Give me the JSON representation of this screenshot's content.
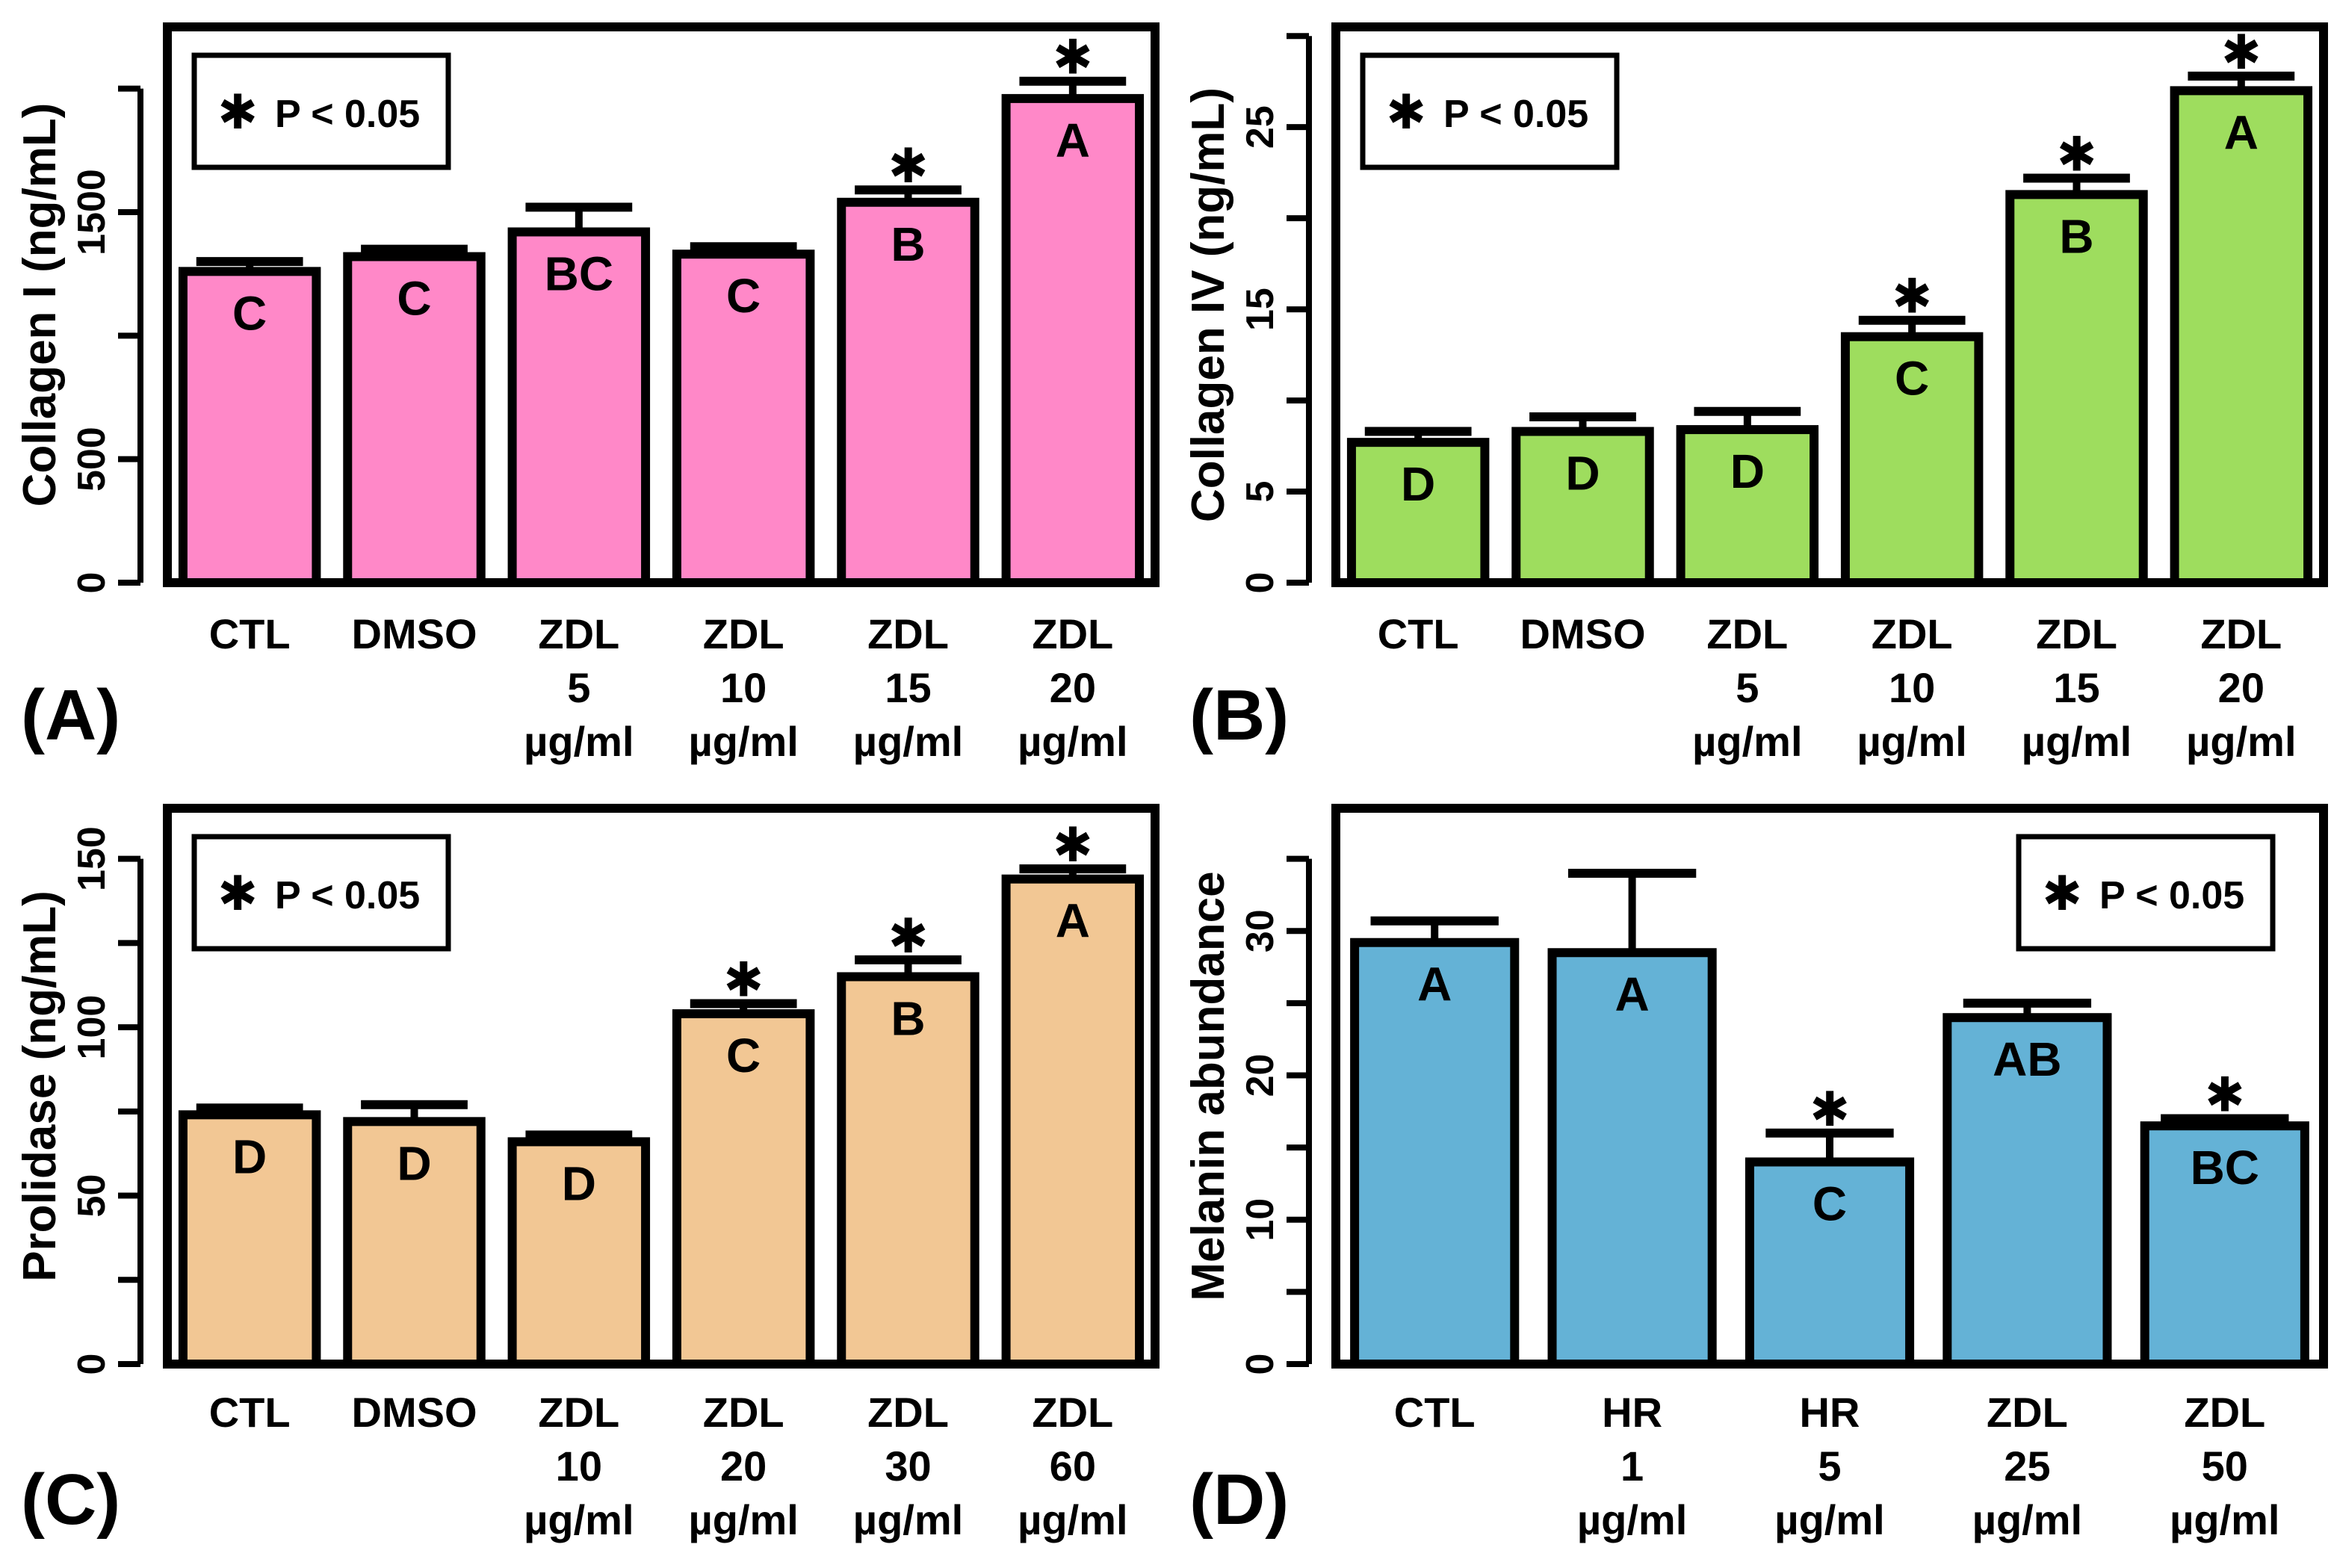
{
  "legend_text": "P < 0.05",
  "legend_symbol": "✱",
  "chart_data": [
    {
      "panel": "(A)",
      "type": "bar",
      "ylabel": "Collagen I (ng/mL)",
      "ylim": [
        0,
        2250
      ],
      "yticks": [
        0,
        500,
        1500
      ],
      "legend_position": "top-left",
      "bar_color": "#ff88c8",
      "categories": [
        [
          "CTL"
        ],
        [
          "DMSO"
        ],
        [
          "ZDL",
          "5",
          "µg/ml"
        ],
        [
          "ZDL",
          "10",
          "µg/ml"
        ],
        [
          "ZDL",
          "15",
          "µg/ml"
        ],
        [
          "ZDL",
          "20",
          "µg/ml"
        ]
      ],
      "values": [
        1260,
        1320,
        1420,
        1330,
        1540,
        1960
      ],
      "errors": [
        40,
        30,
        100,
        30,
        50,
        70
      ],
      "letters": [
        "C",
        "C",
        "BC",
        "C",
        "B",
        "A"
      ],
      "significant": [
        false,
        false,
        false,
        false,
        true,
        true
      ]
    },
    {
      "panel": "(B)",
      "type": "bar",
      "ylabel": "Collagen IV (ng/mL)",
      "ylim": [
        0,
        30.5
      ],
      "yticks": [
        0,
        5,
        15,
        25
      ],
      "legend_position": "top-left",
      "bar_color": "#9edd5e",
      "categories": [
        [
          "CTL"
        ],
        [
          "DMSO"
        ],
        [
          "ZDL",
          "5",
          "µg/ml"
        ],
        [
          "ZDL",
          "10",
          "µg/ml"
        ],
        [
          "ZDL",
          "15",
          "µg/ml"
        ],
        [
          "ZDL",
          "20",
          "µg/ml"
        ]
      ],
      "values": [
        7.7,
        8.3,
        8.4,
        13.5,
        21.3,
        27.0
      ],
      "errors": [
        0.6,
        0.8,
        1.0,
        0.9,
        0.9,
        0.8
      ],
      "letters": [
        "D",
        "D",
        "D",
        "C",
        "B",
        "A"
      ],
      "significant": [
        false,
        false,
        false,
        true,
        true,
        true
      ]
    },
    {
      "panel": "(C)",
      "type": "bar",
      "ylabel": "Prolidase (ng/mL)",
      "ylim": [
        0,
        165
      ],
      "yticks": [
        0,
        50,
        100,
        150
      ],
      "legend_position": "top-left",
      "bar_color": "#f2c794",
      "categories": [
        [
          "CTL"
        ],
        [
          "DMSO"
        ],
        [
          "ZDL",
          "10",
          "µg/ml"
        ],
        [
          "ZDL",
          "20",
          "µg/ml"
        ],
        [
          "ZDL",
          "30",
          "µg/ml"
        ],
        [
          "ZDL",
          "60",
          "µg/ml"
        ]
      ],
      "values": [
        74,
        72,
        66,
        104,
        115,
        144
      ],
      "errors": [
        2,
        5,
        2,
        3,
        5,
        3
      ],
      "letters": [
        "D",
        "D",
        "D",
        "C",
        "B",
        "A"
      ],
      "significant": [
        false,
        false,
        false,
        true,
        true,
        true
      ]
    },
    {
      "panel": "(D)",
      "type": "bar",
      "ylabel": "Melanin abundance",
      "ylim": [
        0,
        38.5
      ],
      "yticks": [
        0,
        10,
        20,
        30
      ],
      "legend_position": "top-right",
      "bar_color": "#64b2d6",
      "categories": [
        [
          "CTL"
        ],
        [
          "HR",
          "1",
          "µg/ml"
        ],
        [
          "HR",
          "5",
          "µg/ml"
        ],
        [
          "ZDL",
          "25",
          "µg/ml"
        ],
        [
          "ZDL",
          "50",
          "µg/ml"
        ]
      ],
      "values": [
        29.2,
        28.5,
        14.0,
        24.0,
        16.5
      ],
      "errors": [
        1.5,
        5.5,
        2.0,
        1.0,
        0.5
      ],
      "letters": [
        "A",
        "A",
        "C",
        "AB",
        "BC"
      ],
      "significant": [
        false,
        false,
        true,
        false,
        true
      ]
    }
  ]
}
